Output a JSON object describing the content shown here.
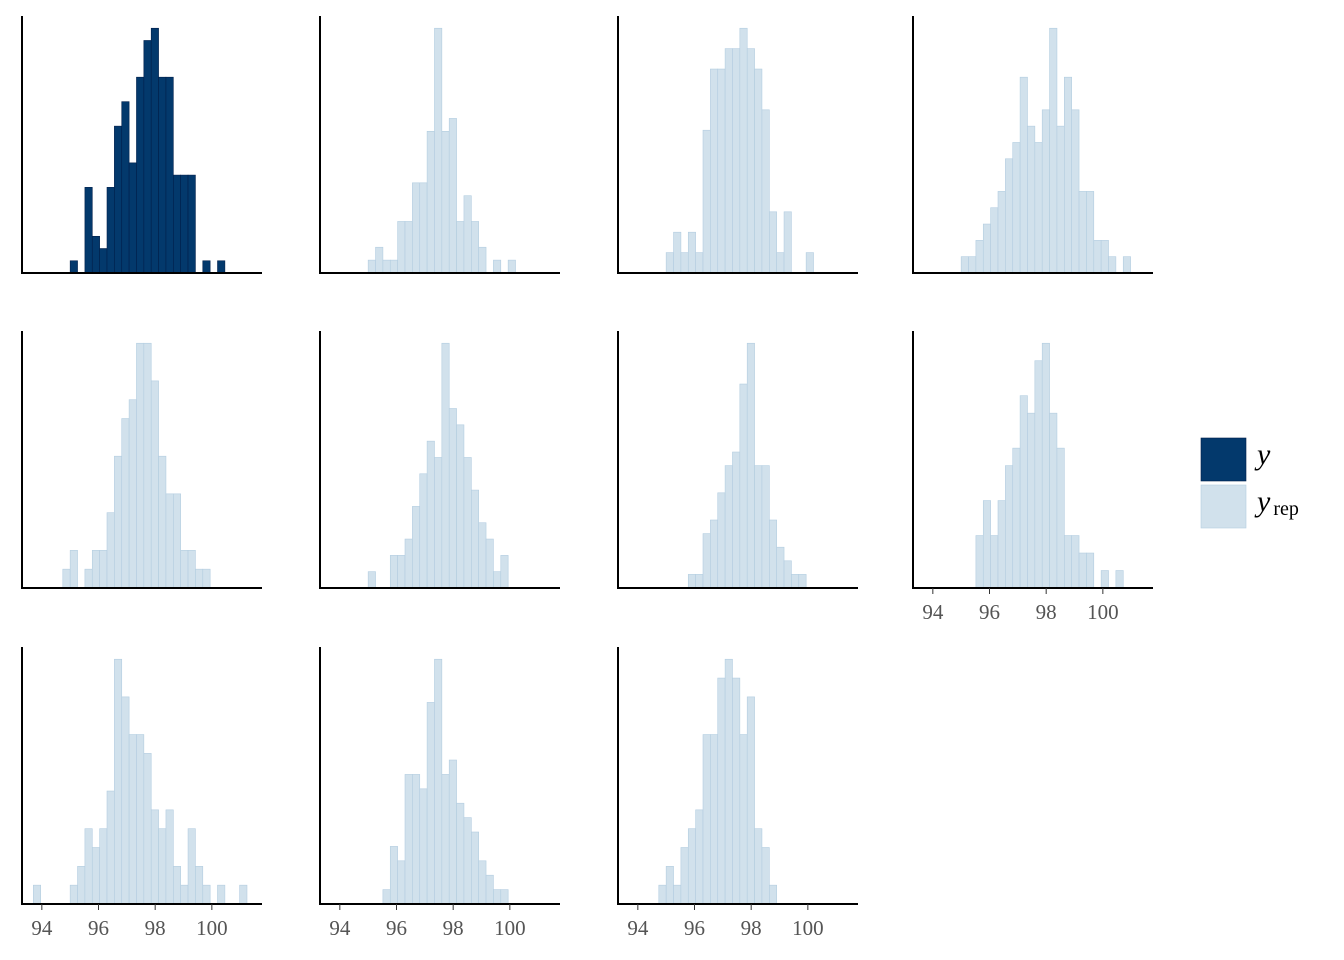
{
  "chart_data": {
    "type": "histogram",
    "bins": [
      93.7,
      93.96,
      94.22,
      94.48,
      94.74,
      95,
      95.26,
      95.52,
      95.78,
      96.04,
      96.3,
      96.56,
      96.82,
      97.08,
      97.34,
      97.6,
      97.86,
      98.12,
      98.38,
      98.64,
      98.9,
      99.16,
      99.42,
      99.68,
      99.94,
      100.2,
      100.46,
      100.72,
      100.98,
      101.24,
      101.5
    ],
    "xlim": [
      93.3,
      101.77
    ],
    "xticks": [
      94,
      96,
      98,
      100
    ],
    "series": [
      {
        "name": "y",
        "color": "#03396c",
        "edge": "#011f4b",
        "counts": [
          [
            0,
            0,
            0,
            0,
            0,
            1,
            0,
            7,
            3,
            2,
            7,
            12,
            14,
            9,
            16,
            19,
            20,
            16,
            16,
            8,
            8,
            8,
            0,
            1,
            0,
            1,
            0,
            0,
            0,
            0
          ]
        ]
      },
      {
        "name": "y",
        "subscript": "rep",
        "color": "#d1e1ec",
        "edge": "#b3cde0",
        "counts": [
          [
            0,
            0,
            0,
            0,
            0,
            1,
            2,
            1,
            1,
            4,
            4,
            7,
            7,
            11,
            19,
            11,
            12,
            4,
            6,
            4,
            2,
            0,
            1,
            0,
            1,
            0,
            0,
            0,
            0,
            0
          ],
          [
            0,
            0,
            0,
            0,
            0,
            1,
            2,
            1,
            2,
            1,
            7,
            10,
            10,
            11,
            11,
            12,
            11,
            10,
            8,
            3,
            1,
            3,
            0,
            0,
            1,
            0,
            0,
            0,
            0,
            0
          ],
          [
            0,
            0,
            0,
            0,
            0,
            1,
            1,
            2,
            3,
            4,
            5,
            7,
            8,
            12,
            9,
            8,
            10,
            15,
            9,
            12,
            10,
            5,
            5,
            2,
            2,
            1,
            0,
            1,
            0,
            0
          ],
          [
            0,
            0,
            0,
            0,
            1,
            2,
            0,
            1,
            2,
            2,
            4,
            7,
            9,
            10,
            13,
            13,
            11,
            7,
            5,
            5,
            2,
            2,
            1,
            1,
            0,
            0,
            0,
            0,
            0,
            0
          ],
          [
            0,
            0,
            0,
            0,
            0,
            1,
            0,
            0,
            2,
            2,
            3,
            5,
            7,
            9,
            8,
            15,
            11,
            10,
            8,
            6,
            4,
            3,
            1,
            2,
            0,
            0,
            0,
            0,
            0,
            0
          ],
          [
            0,
            0,
            0,
            0,
            0,
            0,
            0,
            0,
            1,
            1,
            4,
            5,
            7,
            9,
            10,
            15,
            18,
            9,
            9,
            5,
            3,
            2,
            1,
            1,
            0,
            0,
            0,
            0,
            0,
            0
          ],
          [
            0,
            0,
            0,
            0,
            0,
            0,
            0,
            3,
            5,
            3,
            5,
            7,
            8,
            11,
            10,
            13,
            14,
            10,
            8,
            3,
            3,
            2,
            2,
            0,
            1,
            0,
            1,
            0,
            0,
            0
          ],
          [
            1,
            0,
            0,
            0,
            0,
            1,
            2,
            4,
            3,
            4,
            6,
            13,
            11,
            9,
            9,
            8,
            5,
            4,
            5,
            2,
            1,
            4,
            2,
            1,
            0,
            1,
            0,
            0,
            1,
            0
          ],
          [
            0,
            0,
            0,
            0,
            0,
            0,
            0,
            1,
            4,
            3,
            9,
            9,
            8,
            14,
            17,
            9,
            10,
            7,
            6,
            5,
            3,
            2,
            1,
            1,
            0,
            0,
            0,
            0,
            0,
            0
          ],
          [
            0,
            0,
            0,
            0,
            1,
            2,
            1,
            3,
            4,
            5,
            9,
            9,
            12,
            13,
            12,
            9,
            11,
            4,
            3,
            1,
            0,
            0,
            0,
            0,
            0,
            0,
            0,
            0,
            0,
            0
          ]
        ]
      }
    ]
  }
}
